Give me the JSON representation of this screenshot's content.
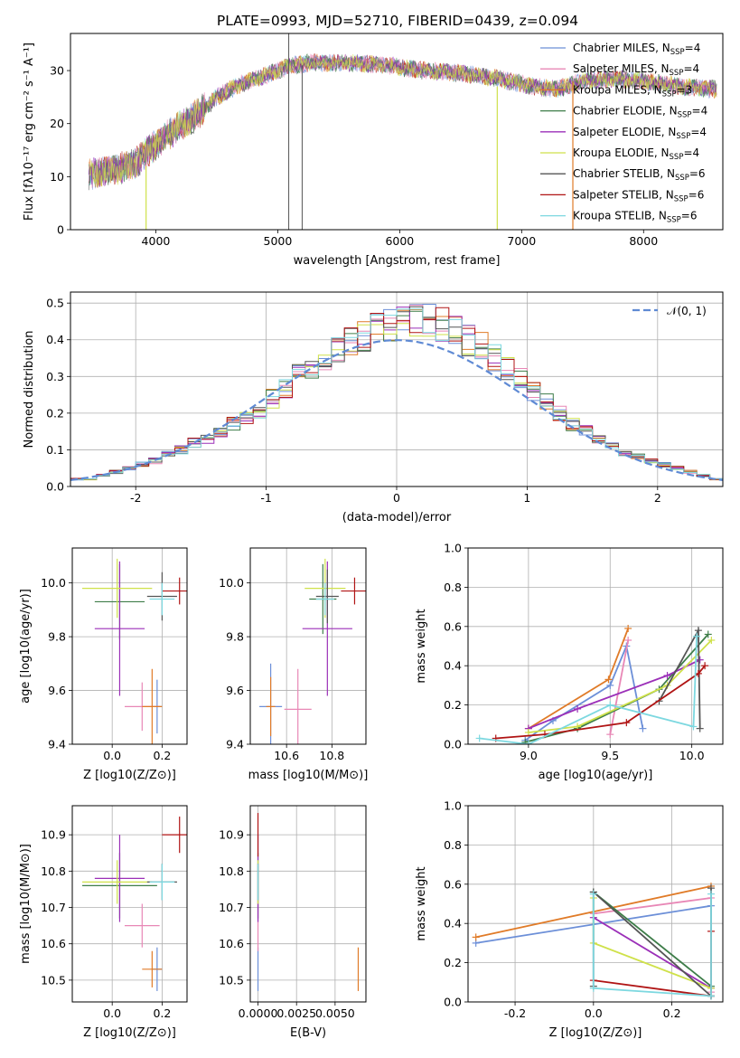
{
  "figure_title": "PLATE=0993, MJD=52710, FIBERID=0439, z=0.094",
  "series_colors": [
    "#6c8fd8",
    "#e887b6",
    "#e07b28",
    "#3e7d49",
    "#9b2fb8",
    "#cfe14a",
    "#555555",
    "#b01414",
    "#7dd8e0"
  ],
  "chart_data": [
    {
      "id": "spectrum",
      "type": "line",
      "title": "PLATE=0993, MJD=52710, FIBERID=0439, z=0.094",
      "xlabel": "wavelength [Angstrom, rest frame]",
      "ylabel": "Flux [fλ10⁻¹⁷ erg cm⁻² s⁻¹ A⁻¹]",
      "xlim": [
        3300,
        8650
      ],
      "ylim": [
        0,
        37
      ],
      "xticks": [
        4000,
        5000,
        6000,
        7000,
        8000
      ],
      "yticks": [
        0,
        10,
        20,
        30
      ],
      "legend_position": "upper-right",
      "legend": [
        "Chabrier MILES, N_SSP=4",
        "Salpeter MILES, N_SSP=4",
        "Kroupa MILES, N_SSP=3",
        "Chabrier ELODIE, N_SSP=4",
        "Salpeter ELODIE, N_SSP=4",
        "Kroupa ELODIE, N_SSP=4",
        "Chabrier STELIB, N_SSP=6",
        "Salpeter STELIB, N_SSP=6",
        "Kroupa STELIB, N_SSP=6"
      ],
      "continuum": {
        "x": [
          3450,
          3600,
          3800,
          3950,
          4100,
          4300,
          4500,
          4700,
          4900,
          5100,
          5300,
          5600,
          5900,
          6200,
          6500,
          6800,
          7100,
          7300,
          7500,
          7800,
          8000,
          8300,
          8600
        ],
        "y": [
          10.5,
          11,
          12,
          15,
          18,
          21,
          25,
          27.5,
          29,
          31,
          31.5,
          31.5,
          31,
          30,
          29.5,
          28.5,
          27,
          26.5,
          28,
          28.5,
          28,
          27,
          26.5
        ]
      },
      "lines": [
        {
          "x": 5090,
          "y": 37
        },
        {
          "x": 5200,
          "y": 31
        }
      ]
    },
    {
      "id": "residuals",
      "type": "histogram",
      "xlabel": "(data-model)/error",
      "ylabel": "Normed distribution",
      "xlim": [
        -2.5,
        2.5
      ],
      "ylim": [
        0,
        0.53
      ],
      "xticks": [
        -2,
        -1,
        0,
        1,
        2
      ],
      "yticks": [
        0.0,
        0.1,
        0.2,
        0.3,
        0.4,
        0.5
      ],
      "bin_width": 0.1,
      "bin_start": -2.5,
      "values": [
        0.02,
        0.02,
        0.03,
        0.04,
        0.05,
        0.06,
        0.07,
        0.09,
        0.1,
        0.12,
        0.13,
        0.15,
        0.17,
        0.19,
        0.21,
        0.24,
        0.27,
        0.3,
        0.32,
        0.35,
        0.37,
        0.39,
        0.41,
        0.43,
        0.44,
        0.45,
        0.45,
        0.45,
        0.44,
        0.42,
        0.4,
        0.38,
        0.35,
        0.32,
        0.29,
        0.26,
        0.23,
        0.2,
        0.17,
        0.15,
        0.13,
        0.11,
        0.09,
        0.08,
        0.07,
        0.06,
        0.05,
        0.04,
        0.03,
        0.02
      ],
      "reference": {
        "name": "𝒩(0, 1)",
        "mean": 0,
        "sigma": 1
      },
      "legend_position": "upper-right"
    },
    {
      "id": "age-vs-Z",
      "type": "errorbar",
      "xlabel": "Z [log10(Z/Z⊙)]",
      "ylabel": "age  [log10(age/yr)]",
      "xlim": [
        -0.16,
        0.3
      ],
      "ylim": [
        9.4,
        10.13
      ],
      "xticks": [
        0.0,
        0.2
      ],
      "yticks": [
        9.4,
        9.6,
        9.8,
        10.0
      ],
      "points": [
        {
          "x": 0.18,
          "y": 9.54,
          "xerr": 0.02,
          "yerr": 0.1
        },
        {
          "x": 0.12,
          "y": 9.54,
          "xerr": 0.07,
          "yerr": 0.09
        },
        {
          "x": 0.16,
          "y": 9.54,
          "xerr": 0.04,
          "yerr": 0.14
        },
        {
          "x": 0.03,
          "y": 9.93,
          "xerr": 0.1,
          "yerr": 0.14
        },
        {
          "x": 0.03,
          "y": 9.83,
          "xerr": 0.1,
          "yerr": 0.25
        },
        {
          "x": 0.02,
          "y": 9.98,
          "xerr": 0.14,
          "yerr": 0.11
        },
        {
          "x": 0.2,
          "y": 9.95,
          "xerr": 0.06,
          "yerr": 0.09
        },
        {
          "x": 0.27,
          "y": 9.97,
          "xerr": 0.07,
          "yerr": 0.05
        },
        {
          "x": 0.2,
          "y": 9.94,
          "xerr": 0.05,
          "yerr": 0.06
        }
      ]
    },
    {
      "id": "age-vs-mass",
      "type": "errorbar",
      "xlabel": "mass [log10(M/M⊙)]",
      "ylabel": "",
      "xlim": [
        10.44,
        10.95
      ],
      "ylim": [
        9.4,
        10.13
      ],
      "xticks": [
        10.6,
        10.8
      ],
      "yticks": [
        9.4,
        9.6,
        9.8,
        10.0
      ],
      "points": [
        {
          "x": 10.53,
          "y": 9.54,
          "xerr": 0.05,
          "yerr": 0.16
        },
        {
          "x": 10.65,
          "y": 9.53,
          "xerr": 0.06,
          "yerr": 0.15
        },
        {
          "x": 10.53,
          "y": 9.54,
          "xerr": 0.02,
          "yerr": 0.11
        },
        {
          "x": 10.76,
          "y": 9.94,
          "xerr": 0.06,
          "yerr": 0.13
        },
        {
          "x": 10.78,
          "y": 9.83,
          "xerr": 0.11,
          "yerr": 0.25
        },
        {
          "x": 10.77,
          "y": 9.98,
          "xerr": 0.09,
          "yerr": 0.11
        },
        {
          "x": 10.78,
          "y": 9.95,
          "xerr": 0.05,
          "yerr": 0.1
        },
        {
          "x": 10.9,
          "y": 9.97,
          "xerr": 0.06,
          "yerr": 0.05
        },
        {
          "x": 10.77,
          "y": 9.94,
          "xerr": 0.04,
          "yerr": 0.06
        }
      ]
    },
    {
      "id": "weight-vs-age",
      "type": "line",
      "xlabel": "age  [log10(age/yr)]",
      "ylabel": "mass weight",
      "xlim": [
        8.63,
        10.19
      ],
      "ylim": [
        0,
        1
      ],
      "xticks": [
        9.0,
        9.5,
        10.0
      ],
      "yticks": [
        0.0,
        0.2,
        0.4,
        0.6,
        0.8,
        1.0
      ],
      "series": [
        {
          "color": "#6c8fd8",
          "x": [
            8.98,
            9.15,
            9.5,
            9.6,
            9.7
          ],
          "y": [
            0.02,
            0.12,
            0.3,
            0.5,
            0.08
          ]
        },
        {
          "color": "#e887b6",
          "x": [
            9.5,
            9.61
          ],
          "y": [
            0.05,
            0.53
          ]
        },
        {
          "color": "#e07b28",
          "x": [
            9.0,
            9.49,
            9.61
          ],
          "y": [
            0.08,
            0.33,
            0.59
          ]
        },
        {
          "color": "#3e7d49",
          "x": [
            8.98,
            9.3,
            9.8,
            10.1
          ],
          "y": [
            0.01,
            0.08,
            0.28,
            0.56
          ]
        },
        {
          "color": "#9b2fb8",
          "x": [
            9.0,
            9.3,
            9.85,
            10.05
          ],
          "y": [
            0.08,
            0.18,
            0.35,
            0.43
          ]
        },
        {
          "color": "#cfe14a",
          "x": [
            9.0,
            9.3,
            9.85,
            10.12
          ],
          "y": [
            0.06,
            0.09,
            0.3,
            0.53
          ]
        },
        {
          "color": "#555555",
          "x": [
            9.8,
            10.04,
            10.05
          ],
          "y": [
            0.22,
            0.58,
            0.08
          ]
        },
        {
          "color": "#b01414",
          "x": [
            8.8,
            9.1,
            9.6,
            10.04,
            10.08
          ],
          "y": [
            0.03,
            0.05,
            0.11,
            0.36,
            0.4
          ]
        },
        {
          "color": "#7dd8e0",
          "x": [
            8.7,
            9.0,
            9.5,
            10.01,
            10.03
          ],
          "y": [
            0.03,
            0.0,
            0.2,
            0.09,
            0.55
          ]
        }
      ]
    },
    {
      "id": "mass-vs-Z",
      "type": "errorbar",
      "xlabel": "Z [log10(Z/Z⊙)]",
      "ylabel": "mass [log10(M/M⊙)]",
      "xlim": [
        -0.16,
        0.3
      ],
      "ylim": [
        10.44,
        10.98
      ],
      "xticks": [
        0.0,
        0.2
      ],
      "yticks": [
        10.5,
        10.6,
        10.7,
        10.8,
        10.9
      ],
      "points": [
        {
          "x": 0.18,
          "y": 10.53,
          "xerr": 0.02,
          "yerr": 0.06
        },
        {
          "x": 0.12,
          "y": 10.65,
          "xerr": 0.07,
          "yerr": 0.06
        },
        {
          "x": 0.16,
          "y": 10.53,
          "xerr": 0.04,
          "yerr": 0.05
        },
        {
          "x": 0.03,
          "y": 10.76,
          "xerr": 0.15,
          "yerr": 0.09
        },
        {
          "x": 0.03,
          "y": 10.78,
          "xerr": 0.1,
          "yerr": 0.12
        },
        {
          "x": 0.02,
          "y": 10.77,
          "xerr": 0.14,
          "yerr": 0.06
        },
        {
          "x": 0.2,
          "y": 10.77,
          "xerr": 0.06,
          "yerr": 0.05
        },
        {
          "x": 0.27,
          "y": 10.9,
          "xerr": 0.07,
          "yerr": 0.05
        },
        {
          "x": 0.2,
          "y": 10.77,
          "xerr": 0.05,
          "yerr": 0.05
        }
      ]
    },
    {
      "id": "mass-vs-ebv",
      "type": "errorbar",
      "xlabel": "E(B-V)",
      "ylabel": "",
      "xlim": [
        -0.0005,
        0.007
      ],
      "ylim": [
        10.44,
        10.98
      ],
      "xticks": [
        0.0,
        0.0025,
        0.005
      ],
      "xtick_labels": [
        "0.0000",
        "0.0025",
        "0.0050"
      ],
      "yticks": [
        10.5,
        10.6,
        10.7,
        10.8,
        10.9
      ],
      "points": [
        {
          "x": 0.0,
          "y": 10.53,
          "xerr": 0,
          "yerr": 0.06
        },
        {
          "x": 0.0,
          "y": 10.65,
          "xerr": 0,
          "yerr": 0.07
        },
        {
          "x": 0.0065,
          "y": 10.53,
          "xerr": 0,
          "yerr": 0.06
        },
        {
          "x": 0.0,
          "y": 10.76,
          "xerr": 0,
          "yerr": 0.09
        },
        {
          "x": 0.0,
          "y": 10.78,
          "xerr": 0,
          "yerr": 0.12
        },
        {
          "x": 0.0,
          "y": 10.77,
          "xerr": 0,
          "yerr": 0.06
        },
        {
          "x": 0.0,
          "y": 10.77,
          "xerr": 0,
          "yerr": 0.05
        },
        {
          "x": 0.0,
          "y": 10.9,
          "xerr": 0,
          "yerr": 0.06
        },
        {
          "x": 0.0,
          "y": 10.77,
          "xerr": 0,
          "yerr": 0.05
        }
      ]
    },
    {
      "id": "weight-vs-Z",
      "type": "line",
      "xlabel": "Z [log10(Z/Z⊙)]",
      "ylabel": "mass weight",
      "xlim": [
        -0.32,
        0.33
      ],
      "ylim": [
        0,
        1
      ],
      "xticks": [
        -0.2,
        0.0,
        0.2
      ],
      "yticks": [
        0.0,
        0.2,
        0.4,
        0.6,
        0.8,
        1.0
      ],
      "series": [
        {
          "color": "#6c8fd8",
          "x": [
            -0.3,
            0.3,
            0.3
          ],
          "y": [
            0.3,
            0.49,
            0.03
          ]
        },
        {
          "color": "#e887b6",
          "x": [
            0.0,
            0.3,
            0.3
          ],
          "y": [
            0.45,
            0.53,
            0.05
          ]
        },
        {
          "color": "#e07b28",
          "x": [
            -0.3,
            0.3
          ],
          "y": [
            0.33,
            0.59
          ]
        },
        {
          "color": "#3e7d49",
          "x": [
            0.0,
            0.3,
            0.3
          ],
          "y": [
            0.56,
            0.08,
            0.03
          ]
        },
        {
          "color": "#9b2fb8",
          "x": [
            0.0,
            0.3
          ],
          "y": [
            0.43,
            0.07
          ]
        },
        {
          "color": "#cfe14a",
          "x": [
            0.0,
            0.0,
            0.3
          ],
          "y": [
            0.53,
            0.3,
            0.07
          ]
        },
        {
          "color": "#555555",
          "x": [
            0.0,
            0.0,
            0.3,
            0.3
          ],
          "y": [
            0.08,
            0.56,
            0.03,
            0.58
          ]
        },
        {
          "color": "#b01414",
          "x": [
            0.0,
            0.3,
            0.3
          ],
          "y": [
            0.11,
            0.03,
            0.36
          ]
        },
        {
          "color": "#7dd8e0",
          "x": [
            0.0,
            0.0,
            0.3,
            0.3
          ],
          "y": [
            0.55,
            0.07,
            0.03,
            0.55
          ]
        }
      ]
    }
  ]
}
